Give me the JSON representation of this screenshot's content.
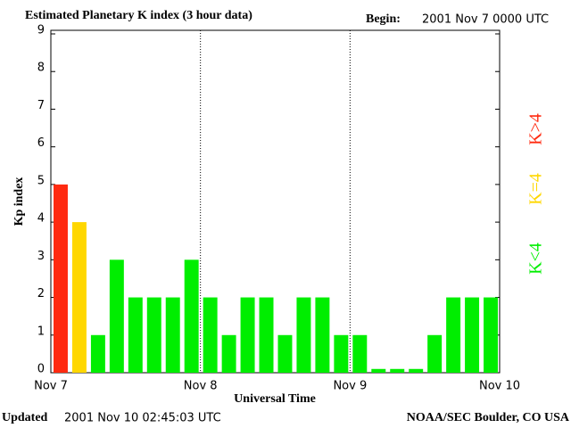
{
  "chart_data": {
    "type": "bar",
    "title": "Estimated Planetary K index (3 hour data)",
    "begin_label": "Begin:",
    "begin_value": "2001 Nov 7 0000 UTC",
    "ylabel": "Kp index",
    "xlabel": "Universal Time",
    "updated_label": "Updated",
    "updated_value": "2001 Nov 10 02:45:03 UTC",
    "source": "NOAA/SEC Boulder, CO USA",
    "day_labels": [
      "Nov 7",
      "Nov 8",
      "Nov 9",
      "Nov 10"
    ],
    "values": [
      5,
      4,
      1,
      3,
      2,
      2,
      2,
      3,
      2,
      1,
      2,
      2,
      1,
      2,
      2,
      1,
      1,
      0.1,
      0.1,
      0.1,
      1,
      2,
      2,
      2
    ],
    "colors": [
      "#ff2a10",
      "#ffd700",
      "#00ee00",
      "#00ee00",
      "#00ee00",
      "#00ee00",
      "#00ee00",
      "#00ee00",
      "#00ee00",
      "#00ee00",
      "#00ee00",
      "#00ee00",
      "#00ee00",
      "#00ee00",
      "#00ee00",
      "#00ee00",
      "#00ee00",
      "#00ee00",
      "#00ee00",
      "#00ee00",
      "#00ee00",
      "#00ee00",
      "#00ee00",
      "#00ee00"
    ],
    "ylim": [
      0,
      9
    ],
    "yticks": [
      0,
      1,
      2,
      3,
      4,
      5,
      6,
      7,
      8,
      9
    ],
    "legend": [
      {
        "label": "K<4",
        "color": "#00ee00"
      },
      {
        "label": "K=4",
        "color": "#ffd700"
      },
      {
        "label": "K>4",
        "color": "#ff2a10"
      }
    ]
  }
}
